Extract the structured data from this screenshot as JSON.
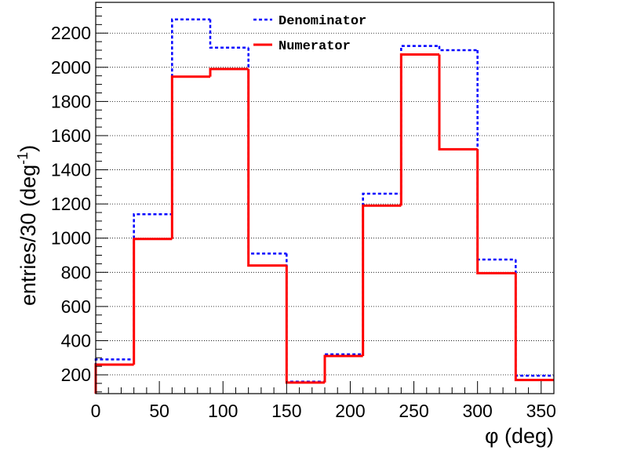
{
  "chart_data": {
    "type": "line",
    "xlabel": "φ (deg)",
    "ylabel_main": "entries/30 (deg",
    "ylabel_sup": "-1",
    "ylabel_close": ")",
    "xlim": [
      0,
      360
    ],
    "ylim": [
      90,
      2380
    ],
    "x_ticks": [
      0,
      50,
      100,
      150,
      200,
      250,
      300,
      350
    ],
    "y_ticks": [
      200,
      400,
      600,
      800,
      1000,
      1200,
      1400,
      1600,
      1800,
      2000,
      2200
    ],
    "bin_edges": [
      0,
      30,
      60,
      90,
      120,
      150,
      180,
      210,
      240,
      270,
      300,
      330,
      360
    ],
    "grid": "horizontal",
    "legend_position": "top-center",
    "series": [
      {
        "name": "Denominator",
        "color": "#0000ff",
        "style": "dashed",
        "values": [
          290,
          1140,
          2280,
          2115,
          910,
          160,
          320,
          1260,
          2125,
          2100,
          875,
          195
        ]
      },
      {
        "name": "Numerator",
        "color": "#ff0000",
        "style": "solid",
        "values": [
          260,
          995,
          1945,
          1990,
          840,
          155,
          310,
          1190,
          2075,
          1520,
          795,
          170
        ]
      }
    ]
  }
}
